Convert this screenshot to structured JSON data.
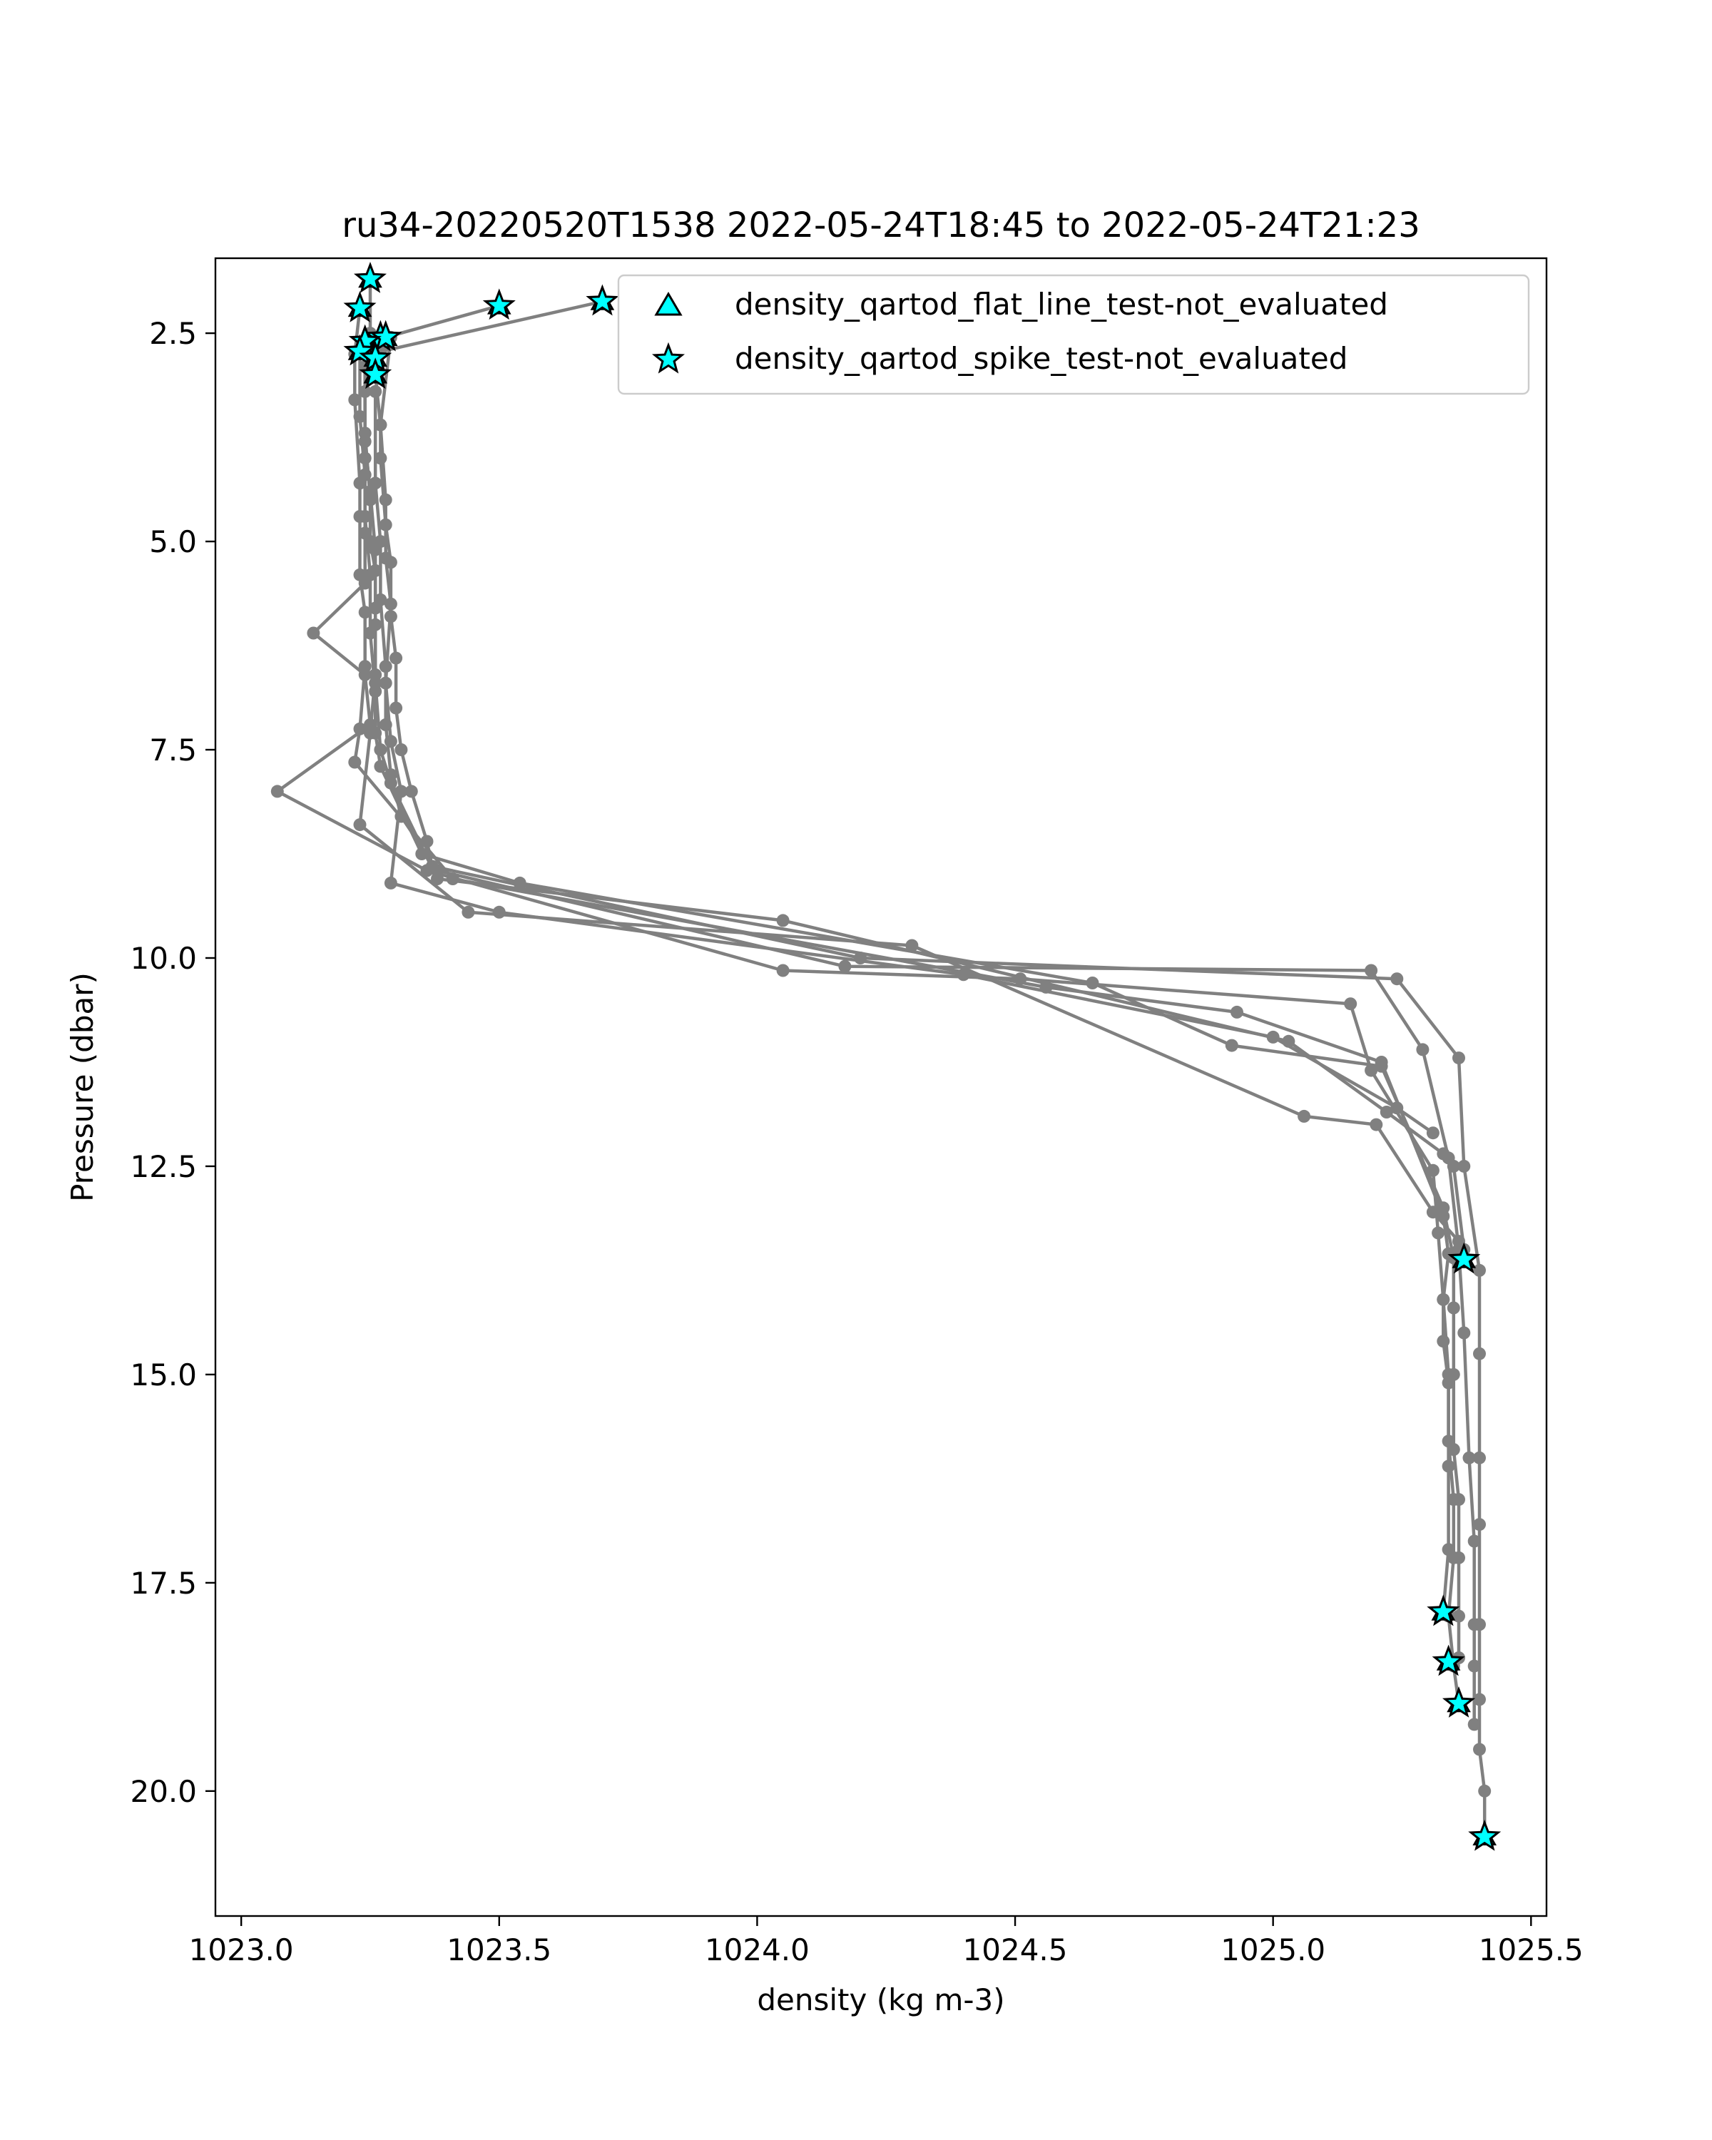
{
  "chart_data": {
    "type": "scatter",
    "title": "ru34-20220520T1538 2022-05-24T18:45 to 2022-05-24T21:23",
    "xlabel": "density (kg m-3)",
    "ylabel": "Pressure (dbar)",
    "xlim": [
      1022.95,
      1025.53
    ],
    "ylim": [
      21.5,
      1.6
    ],
    "y_inverted": true,
    "xticks": [
      1023.0,
      1023.5,
      1024.0,
      1024.5,
      1025.0,
      1025.5
    ],
    "xtick_labels": [
      "1023.0",
      "1023.5",
      "1024.0",
      "1024.5",
      "1025.0",
      "1025.5"
    ],
    "yticks": [
      2.5,
      5.0,
      7.5,
      10.0,
      12.5,
      15.0,
      17.5,
      20.0
    ],
    "ytick_labels": [
      "2.5",
      "5.0",
      "7.5",
      "10.0",
      "12.5",
      "15.0",
      "17.5",
      "20.0"
    ],
    "grid": false,
    "legend_position": "top-right",
    "colors": {
      "profile_line": "#808080",
      "marker_fill": "#00ffff",
      "marker_edge": "#000000"
    },
    "profiles": [
      {
        "points": [
          [
            1023.7,
            2.12
          ],
          [
            1023.27,
            2.72
          ],
          [
            1023.26,
            3.0
          ],
          [
            1023.27,
            3.6
          ],
          [
            1023.27,
            4.0
          ],
          [
            1023.28,
            4.8
          ],
          [
            1023.29,
            5.25
          ],
          [
            1023.29,
            5.9
          ],
          [
            1023.3,
            6.4
          ],
          [
            1023.3,
            7.0
          ],
          [
            1023.31,
            7.5
          ],
          [
            1023.33,
            8.0
          ],
          [
            1023.36,
            8.6
          ],
          [
            1023.37,
            8.9
          ],
          [
            1024.2,
            10.0
          ],
          [
            1025.24,
            10.25
          ],
          [
            1025.36,
            11.2
          ],
          [
            1025.37,
            12.5
          ],
          [
            1025.4,
            13.75
          ],
          [
            1025.4,
            14.75
          ],
          [
            1025.4,
            16.0
          ],
          [
            1025.4,
            16.8
          ],
          [
            1025.4,
            18.0
          ],
          [
            1025.4,
            18.9
          ],
          [
            1025.4,
            19.5
          ],
          [
            1025.41,
            20.0
          ],
          [
            1025.41,
            20.55
          ]
        ]
      },
      {
        "points": [
          [
            1023.5,
            2.17
          ],
          [
            1023.28,
            2.55
          ],
          [
            1023.26,
            3.2
          ],
          [
            1023.26,
            4.3
          ],
          [
            1023.27,
            5.0
          ],
          [
            1023.27,
            5.7
          ],
          [
            1023.28,
            6.5
          ],
          [
            1023.28,
            7.2
          ],
          [
            1023.29,
            7.8
          ],
          [
            1023.31,
            8.3
          ],
          [
            1023.38,
            8.95
          ],
          [
            1024.17,
            10.1
          ],
          [
            1025.19,
            10.15
          ],
          [
            1025.29,
            11.1
          ],
          [
            1025.34,
            12.4
          ],
          [
            1025.36,
            13.5
          ],
          [
            1025.37,
            14.5
          ],
          [
            1025.38,
            16.0
          ],
          [
            1025.39,
            17.0
          ],
          [
            1025.39,
            18.0
          ],
          [
            1025.39,
            18.5
          ],
          [
            1025.39,
            19.2
          ]
        ]
      },
      {
        "points": [
          [
            1023.25,
            1.85
          ],
          [
            1023.25,
            2.5
          ],
          [
            1023.24,
            3.2
          ],
          [
            1023.24,
            4.0
          ],
          [
            1023.24,
            4.7
          ],
          [
            1023.25,
            5.4
          ],
          [
            1023.25,
            6.1
          ],
          [
            1023.26,
            6.8
          ],
          [
            1023.26,
            7.3
          ],
          [
            1023.27,
            7.7
          ],
          [
            1023.35,
            8.75
          ],
          [
            1023.54,
            9.1
          ],
          [
            1024.65,
            10.3
          ],
          [
            1024.92,
            11.05
          ],
          [
            1025.21,
            11.3
          ],
          [
            1025.33,
            13.0
          ],
          [
            1025.35,
            13.6
          ],
          [
            1025.35,
            14.2
          ],
          [
            1025.35,
            15.0
          ],
          [
            1025.35,
            15.9
          ],
          [
            1025.36,
            16.5
          ],
          [
            1025.36,
            17.2
          ],
          [
            1025.36,
            17.9
          ],
          [
            1025.36,
            18.4
          ]
        ]
      },
      {
        "points": [
          [
            1023.23,
            2.2
          ],
          [
            1023.22,
            2.75
          ],
          [
            1023.22,
            3.3
          ],
          [
            1023.23,
            4.3
          ],
          [
            1023.23,
            4.7
          ],
          [
            1023.23,
            5.4
          ],
          [
            1023.24,
            5.85
          ],
          [
            1023.24,
            6.5
          ],
          [
            1023.23,
            7.25
          ],
          [
            1023.22,
            7.65
          ],
          [
            1023.41,
            9.05
          ],
          [
            1024.56,
            10.35
          ],
          [
            1024.93,
            10.65
          ],
          [
            1025.21,
            11.25
          ],
          [
            1025.33,
            13.1
          ],
          [
            1025.34,
            13.55
          ],
          [
            1025.33,
            14.1
          ],
          [
            1025.34,
            15.0
          ],
          [
            1025.34,
            15.8
          ],
          [
            1025.35,
            16.5
          ],
          [
            1025.35,
            17.2
          ],
          [
            1025.34,
            17.9
          ],
          [
            1025.35,
            18.5
          ],
          [
            1025.36,
            18.95
          ]
        ]
      },
      {
        "points": [
          [
            1023.23,
            2.7
          ],
          [
            1023.23,
            3.5
          ],
          [
            1023.24,
            4.2
          ],
          [
            1023.24,
            4.9
          ],
          [
            1023.24,
            5.5
          ],
          [
            1023.14,
            6.1
          ],
          [
            1023.24,
            6.6
          ],
          [
            1023.25,
            7.2
          ],
          [
            1023.07,
            8.0
          ],
          [
            1023.36,
            8.95
          ],
          [
            1024.05,
            10.15
          ],
          [
            1024.51,
            10.25
          ],
          [
            1025.15,
            10.55
          ],
          [
            1025.19,
            11.35
          ],
          [
            1025.31,
            12.55
          ],
          [
            1025.32,
            13.3
          ],
          [
            1025.33,
            14.1
          ],
          [
            1025.33,
            14.6
          ],
          [
            1025.34,
            15.1
          ],
          [
            1025.34,
            16.1
          ],
          [
            1025.34,
            17.1
          ],
          [
            1025.33,
            17.85
          ]
        ]
      },
      {
        "points": [
          [
            1023.25,
            2.55
          ],
          [
            1023.24,
            2.9
          ],
          [
            1023.24,
            3.8
          ],
          [
            1023.25,
            4.4
          ],
          [
            1023.26,
            5.1
          ],
          [
            1023.26,
            5.8
          ],
          [
            1023.26,
            6.7
          ],
          [
            1023.27,
            7.5
          ],
          [
            1023.29,
            7.9
          ],
          [
            1023.38,
            9.05
          ],
          [
            1024.05,
            9.55
          ],
          [
            1025.03,
            11.0
          ],
          [
            1025.22,
            11.85
          ],
          [
            1025.33,
            12.35
          ],
          [
            1025.35,
            12.5
          ],
          [
            1025.37,
            13.5
          ]
        ]
      },
      {
        "points": [
          [
            1023.24,
            2.6
          ],
          [
            1023.24,
            3.7
          ],
          [
            1023.25,
            4.5
          ],
          [
            1023.25,
            5.0
          ],
          [
            1023.26,
            5.35
          ],
          [
            1023.26,
            6.0
          ],
          [
            1023.26,
            6.6
          ],
          [
            1023.25,
            7.3
          ],
          [
            1023.23,
            8.4
          ],
          [
            1023.44,
            9.45
          ],
          [
            1024.3,
            9.85
          ],
          [
            1025.06,
            11.9
          ],
          [
            1025.2,
            12.0
          ],
          [
            1025.31,
            13.05
          ],
          [
            1025.36,
            13.4
          ]
        ]
      },
      {
        "points": [
          [
            1023.29,
            2.55
          ],
          [
            1023.27,
            3.6
          ],
          [
            1023.28,
            4.5
          ],
          [
            1023.28,
            5.2
          ],
          [
            1023.29,
            5.75
          ],
          [
            1023.28,
            6.7
          ],
          [
            1023.29,
            7.4
          ],
          [
            1023.31,
            8.0
          ],
          [
            1023.29,
            9.1
          ],
          [
            1023.5,
            9.45
          ],
          [
            1024.4,
            10.2
          ],
          [
            1025.0,
            10.95
          ],
          [
            1025.24,
            11.8
          ],
          [
            1025.31,
            12.1
          ]
        ]
      }
    ],
    "series": [
      {
        "name": "density_qartod_flat_line_test-not_evaluated",
        "marker": "triangle",
        "points": [
          [
            1023.25,
            1.85
          ],
          [
            1023.23,
            2.2
          ],
          [
            1023.5,
            2.17
          ],
          [
            1023.7,
            2.12
          ],
          [
            1023.27,
            2.55
          ],
          [
            1023.28,
            2.55
          ],
          [
            1023.24,
            2.6
          ],
          [
            1023.23,
            2.72
          ],
          [
            1023.26,
            2.8
          ],
          [
            1023.26,
            3.0
          ],
          [
            1025.37,
            13.62
          ],
          [
            1025.33,
            17.85
          ],
          [
            1025.34,
            18.45
          ],
          [
            1025.36,
            18.95
          ],
          [
            1025.41,
            20.55
          ]
        ]
      },
      {
        "name": "density_qartod_spike_test-not_evaluated",
        "marker": "star",
        "points": [
          [
            1023.25,
            1.85
          ],
          [
            1023.23,
            2.2
          ],
          [
            1023.5,
            2.17
          ],
          [
            1023.7,
            2.12
          ],
          [
            1023.27,
            2.55
          ],
          [
            1023.28,
            2.55
          ],
          [
            1023.24,
            2.6
          ],
          [
            1023.23,
            2.72
          ],
          [
            1023.26,
            2.8
          ],
          [
            1023.26,
            3.0
          ],
          [
            1025.37,
            13.62
          ],
          [
            1025.33,
            17.85
          ],
          [
            1025.34,
            18.45
          ],
          [
            1025.36,
            18.95
          ],
          [
            1025.41,
            20.55
          ]
        ]
      }
    ]
  }
}
